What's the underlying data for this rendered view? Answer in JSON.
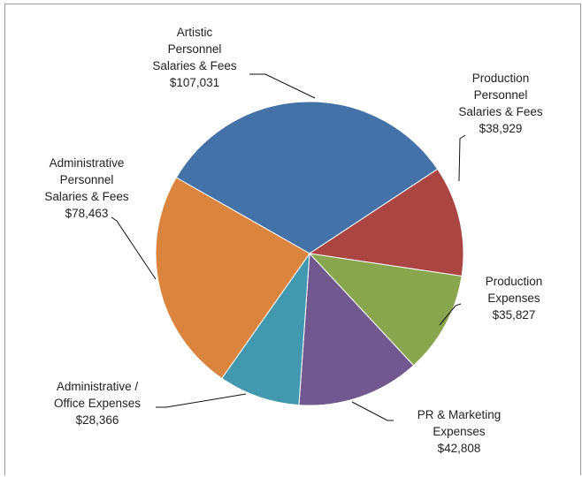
{
  "chart_data": {
    "type": "pie",
    "title": "",
    "slices": [
      {
        "lines": [
          "Artistic",
          "Personnel",
          "Salaries & Fees",
          "$107,031"
        ],
        "value": 107031,
        "color": "#4472A8"
      },
      {
        "lines": [
          "Production",
          "Personnel",
          "Salaries & Fees",
          "$38,929"
        ],
        "value": 38929,
        "color": "#AA4542"
      },
      {
        "lines": [
          "Production",
          "Expenses",
          "$35,827"
        ],
        "value": 35827,
        "color": "#89A54E"
      },
      {
        "lines": [
          "PR & Marketing",
          "Expenses",
          "$42,808"
        ],
        "value": 42808,
        "color": "#71588F"
      },
      {
        "lines": [
          "Administrative /",
          "Office Expenses",
          "$28,366"
        ],
        "value": 28366,
        "color": "#4198AF"
      },
      {
        "lines": [
          "Administrative",
          "Personnel",
          "Salaries & Fees",
          "$78,463"
        ],
        "value": 78463,
        "color": "#DB843D"
      }
    ],
    "legend": "none",
    "data_labels": "outside-with-leader-lines"
  }
}
